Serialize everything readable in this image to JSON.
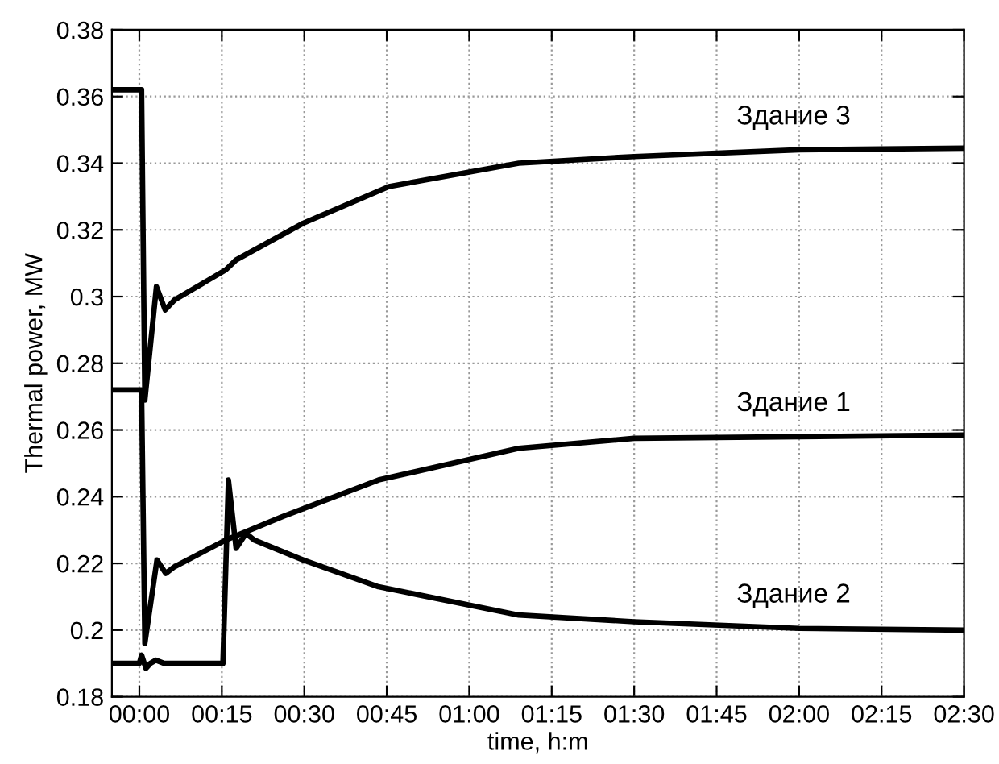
{
  "chart_data": {
    "type": "line",
    "xlabel": "time, h:m",
    "ylabel": "Thermal power, MW",
    "xlim": [
      -0.0833,
      2.5
    ],
    "ylim": [
      0.18,
      0.38
    ],
    "xticks": [
      {
        "value": 0,
        "label": "00:00"
      },
      {
        "value": 0.25,
        "label": "00:15"
      },
      {
        "value": 0.5,
        "label": "00:30"
      },
      {
        "value": 0.75,
        "label": "00:45"
      },
      {
        "value": 1,
        "label": "01:00"
      },
      {
        "value": 1.25,
        "label": "01:15"
      },
      {
        "value": 1.5,
        "label": "01:30"
      },
      {
        "value": 1.75,
        "label": "01:45"
      },
      {
        "value": 2,
        "label": "02:00"
      },
      {
        "value": 2.25,
        "label": "02:15"
      },
      {
        "value": 2.5,
        "label": "02:30"
      }
    ],
    "yticks": [
      0.18,
      0.2,
      0.22,
      0.24,
      0.26,
      0.28,
      0.3,
      0.32,
      0.34,
      0.36,
      0.38
    ],
    "grid": true,
    "legend": false,
    "marker": "none",
    "line_style": "solid",
    "series": [
      {
        "name": "Здание 3",
        "color": "#000000",
        "x": [
          -0.0833,
          0.0067,
          0.0167,
          0.0517,
          0.0783,
          0.1067,
          0.2617,
          0.2933,
          0.4967,
          0.7567,
          1.15,
          1.5,
          2.0,
          2.5
        ],
        "values": [
          0.362,
          0.362,
          0.269,
          0.303,
          0.296,
          0.299,
          0.308,
          0.311,
          0.322,
          0.333,
          0.34,
          0.342,
          0.344,
          0.3445
        ]
      },
      {
        "name": "Здание 1",
        "color": "#000000",
        "x": [
          -0.0833,
          0.0067,
          0.0167,
          0.0533,
          0.08,
          0.1067,
          0.2617,
          0.4333,
          0.725,
          1.15,
          1.5,
          2.0,
          2.5
        ],
        "values": [
          0.272,
          0.272,
          0.196,
          0.221,
          0.217,
          0.219,
          0.227,
          0.234,
          0.245,
          0.2545,
          0.2575,
          0.258,
          0.2585
        ]
      },
      {
        "name": "Здание 2",
        "color": "#000000",
        "x": [
          -0.0833,
          0.0,
          0.0067,
          0.02,
          0.0333,
          0.05,
          0.075,
          0.2533,
          0.27,
          0.2933,
          0.3233,
          0.3483,
          0.4967,
          0.725,
          1.15,
          1.5,
          2.0,
          2.5
        ],
        "values": [
          0.19,
          0.19,
          0.1925,
          0.1885,
          0.19,
          0.191,
          0.19,
          0.19,
          0.245,
          0.2245,
          0.229,
          0.227,
          0.221,
          0.213,
          0.2045,
          0.2025,
          0.2005,
          0.2
        ]
      }
    ]
  }
}
